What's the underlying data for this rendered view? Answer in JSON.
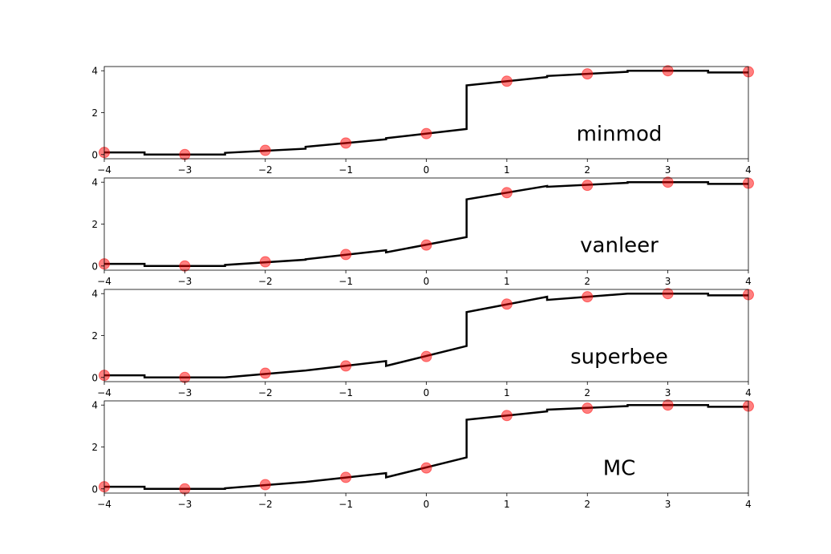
{
  "chart_data": [
    {
      "type": "line",
      "annotation": "minmod",
      "xlim": [
        -4,
        4
      ],
      "ylim": [
        -0.2,
        4.2
      ],
      "x_ticks": [
        "−4",
        "−3",
        "−2",
        "−1",
        "0",
        "1",
        "2",
        "3",
        "4"
      ],
      "y_ticks": [
        "0",
        "2",
        "4"
      ],
      "markers": {
        "x": [
          -4,
          -3,
          -2,
          -1,
          0,
          1,
          2,
          3,
          4
        ],
        "y": [
          0.1,
          0.0,
          0.2,
          0.55,
          1.0,
          3.5,
          3.85,
          4.0,
          3.95
        ],
        "color": "#ff0000"
      },
      "line": {
        "color": "#000000",
        "x": [
          -4,
          -3.5,
          -3.5,
          -2.5,
          -2.5,
          -1.5,
          -1.5,
          -0.5,
          -0.5,
          0.5,
          0.5,
          1.5,
          1.5,
          2.5,
          2.5,
          3.5,
          3.5,
          4
        ],
        "y": [
          0.1,
          0.1,
          0.0,
          0.0,
          0.08,
          0.28,
          0.37,
          0.73,
          0.78,
          1.22,
          3.3,
          3.7,
          3.75,
          3.95,
          4.0,
          4.0,
          3.92,
          3.92
        ]
      }
    },
    {
      "type": "line",
      "annotation": "vanleer",
      "xlim": [
        -4,
        4
      ],
      "ylim": [
        -0.2,
        4.2
      ],
      "x_ticks": [
        "−4",
        "−3",
        "−2",
        "−1",
        "0",
        "1",
        "2",
        "3",
        "4"
      ],
      "y_ticks": [
        "0",
        "2",
        "4"
      ],
      "markers": {
        "x": [
          -4,
          -3,
          -2,
          -1,
          0,
          1,
          2,
          3,
          4
        ],
        "y": [
          0.1,
          0.0,
          0.2,
          0.55,
          1.0,
          3.5,
          3.85,
          4.0,
          3.95
        ],
        "color": "#ff0000"
      },
      "line": {
        "color": "#000000",
        "x": [
          -4,
          -3.5,
          -3.5,
          -2.5,
          -2.5,
          -1.5,
          -1.5,
          -0.5,
          -0.5,
          0.5,
          0.5,
          1.5,
          1.5,
          2.5,
          2.5,
          3.5,
          3.5,
          4
        ],
        "y": [
          0.1,
          0.1,
          0.0,
          0.0,
          0.05,
          0.3,
          0.32,
          0.75,
          0.65,
          1.38,
          3.18,
          3.82,
          3.78,
          3.97,
          4.0,
          4.0,
          3.92,
          3.92
        ]
      }
    },
    {
      "type": "line",
      "annotation": "superbee",
      "xlim": [
        -4,
        4
      ],
      "ylim": [
        -0.2,
        4.2
      ],
      "x_ticks": [
        "−4",
        "−3",
        "−2",
        "−1",
        "0",
        "1",
        "2",
        "3",
        "4"
      ],
      "y_ticks": [
        "0",
        "2",
        "4"
      ],
      "markers": {
        "x": [
          -4,
          -3,
          -2,
          -1,
          0,
          1,
          2,
          3,
          4
        ],
        "y": [
          0.1,
          0.0,
          0.2,
          0.55,
          1.0,
          3.5,
          3.85,
          4.0,
          3.95
        ],
        "color": "#ff0000"
      },
      "line": {
        "color": "#000000",
        "x": [
          -4,
          -3.5,
          -3.5,
          -2.5,
          -2.5,
          -1.5,
          -1.5,
          -0.5,
          -0.5,
          0.5,
          0.5,
          1.5,
          1.5,
          2.5,
          2.5,
          3.5,
          3.5,
          4
        ],
        "y": [
          0.1,
          0.1,
          0.0,
          0.0,
          0.0,
          0.33,
          0.33,
          0.78,
          0.55,
          1.5,
          3.12,
          3.85,
          3.7,
          4.0,
          4.0,
          4.0,
          3.92,
          3.92
        ]
      }
    },
    {
      "type": "line",
      "annotation": "MC",
      "xlim": [
        -4,
        4
      ],
      "ylim": [
        -0.2,
        4.2
      ],
      "x_ticks": [
        "−4",
        "−3",
        "−2",
        "−1",
        "0",
        "1",
        "2",
        "3",
        "4"
      ],
      "y_ticks": [
        "0",
        "2",
        "4"
      ],
      "markers": {
        "x": [
          -4,
          -3,
          -2,
          -1,
          0,
          1,
          2,
          3,
          4
        ],
        "y": [
          0.1,
          0.0,
          0.2,
          0.55,
          1.0,
          3.5,
          3.85,
          4.0,
          3.95
        ],
        "color": "#ff0000"
      },
      "line": {
        "color": "#000000",
        "x": [
          -4,
          -3.5,
          -3.5,
          -2.5,
          -2.5,
          -1.5,
          -1.5,
          -0.5,
          -0.5,
          0.5,
          0.5,
          1.5,
          1.5,
          2.5,
          2.5,
          3.5,
          3.5,
          4
        ],
        "y": [
          0.1,
          0.1,
          0.0,
          0.0,
          0.03,
          0.33,
          0.33,
          0.75,
          0.55,
          1.5,
          3.3,
          3.7,
          3.78,
          3.95,
          4.0,
          4.0,
          3.92,
          3.92
        ]
      }
    }
  ]
}
